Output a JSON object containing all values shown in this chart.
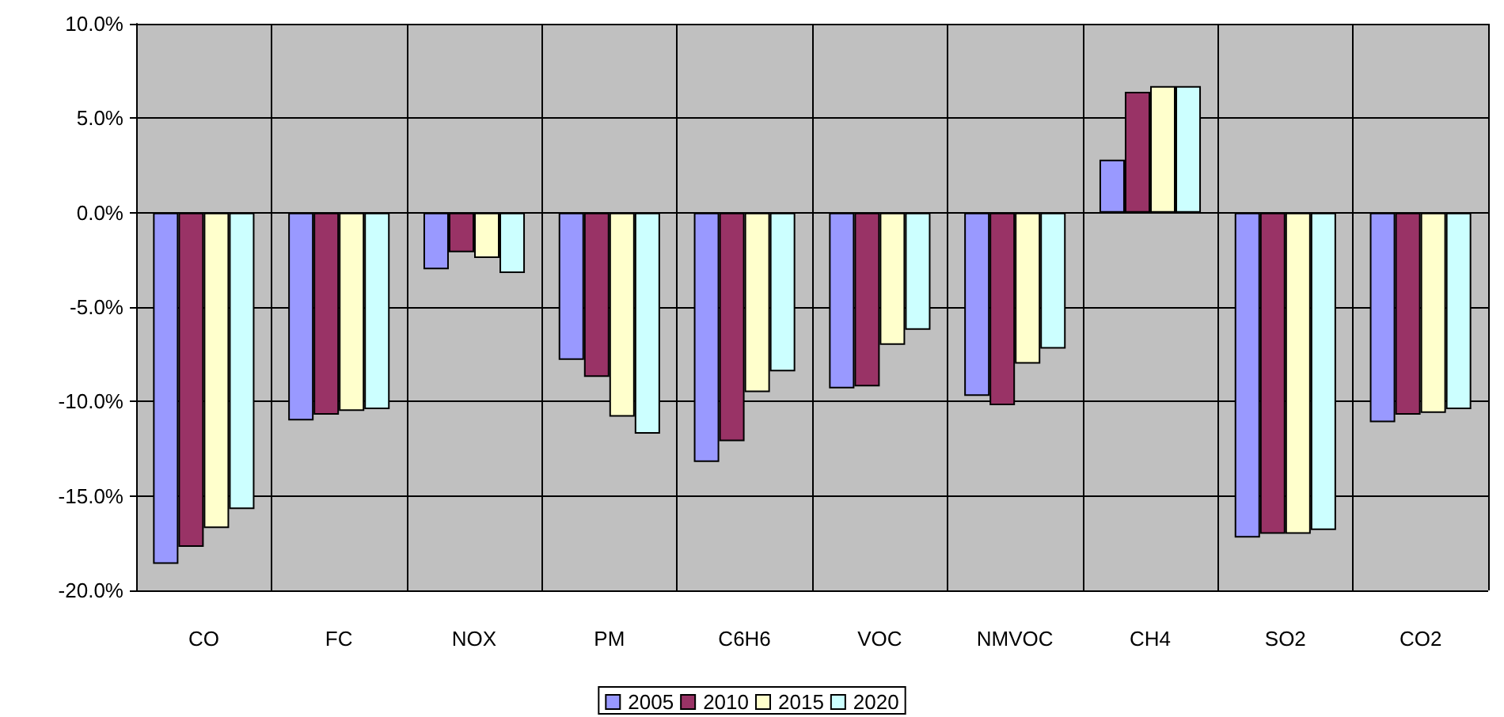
{
  "chart_data": {
    "type": "bar",
    "categories": [
      "CO",
      "FC",
      "NOX",
      "PM",
      "C6H6",
      "VOC",
      "NMVOC",
      "CH4",
      "SO2",
      "CO2"
    ],
    "series": [
      {
        "name": "2005",
        "color": "#9999ff",
        "values": [
          -18.6,
          -11.0,
          -3.0,
          -7.8,
          -13.2,
          -9.3,
          -9.7,
          2.8,
          -17.2,
          -11.1
        ]
      },
      {
        "name": "2010",
        "color": "#993366",
        "values": [
          -17.7,
          -10.7,
          -2.1,
          -8.7,
          -12.1,
          -9.2,
          -10.2,
          6.4,
          -17.0,
          -10.7
        ]
      },
      {
        "name": "2015",
        "color": "#ffffcc",
        "values": [
          -16.7,
          -10.5,
          -2.4,
          -10.8,
          -9.5,
          -7.0,
          -8.0,
          6.7,
          -17.0,
          -10.6
        ]
      },
      {
        "name": "2020",
        "color": "#ccffff",
        "values": [
          -15.7,
          -10.4,
          -3.2,
          -11.7,
          -8.4,
          -6.2,
          -7.2,
          6.7,
          -16.8,
          -10.4
        ]
      }
    ],
    "ylim": [
      -20,
      10
    ],
    "yticks": [
      {
        "value": -20,
        "label": "-20.0%"
      },
      {
        "value": -15,
        "label": "-15.0%"
      },
      {
        "value": -10,
        "label": "-10.0%"
      },
      {
        "value": -5,
        "label": "-5.0%"
      },
      {
        "value": 0,
        "label": "0.0%"
      },
      {
        "value": 5,
        "label": "5.0%"
      },
      {
        "value": 10,
        "label": "10.0%"
      }
    ],
    "grid": true,
    "legend": "bottom"
  }
}
